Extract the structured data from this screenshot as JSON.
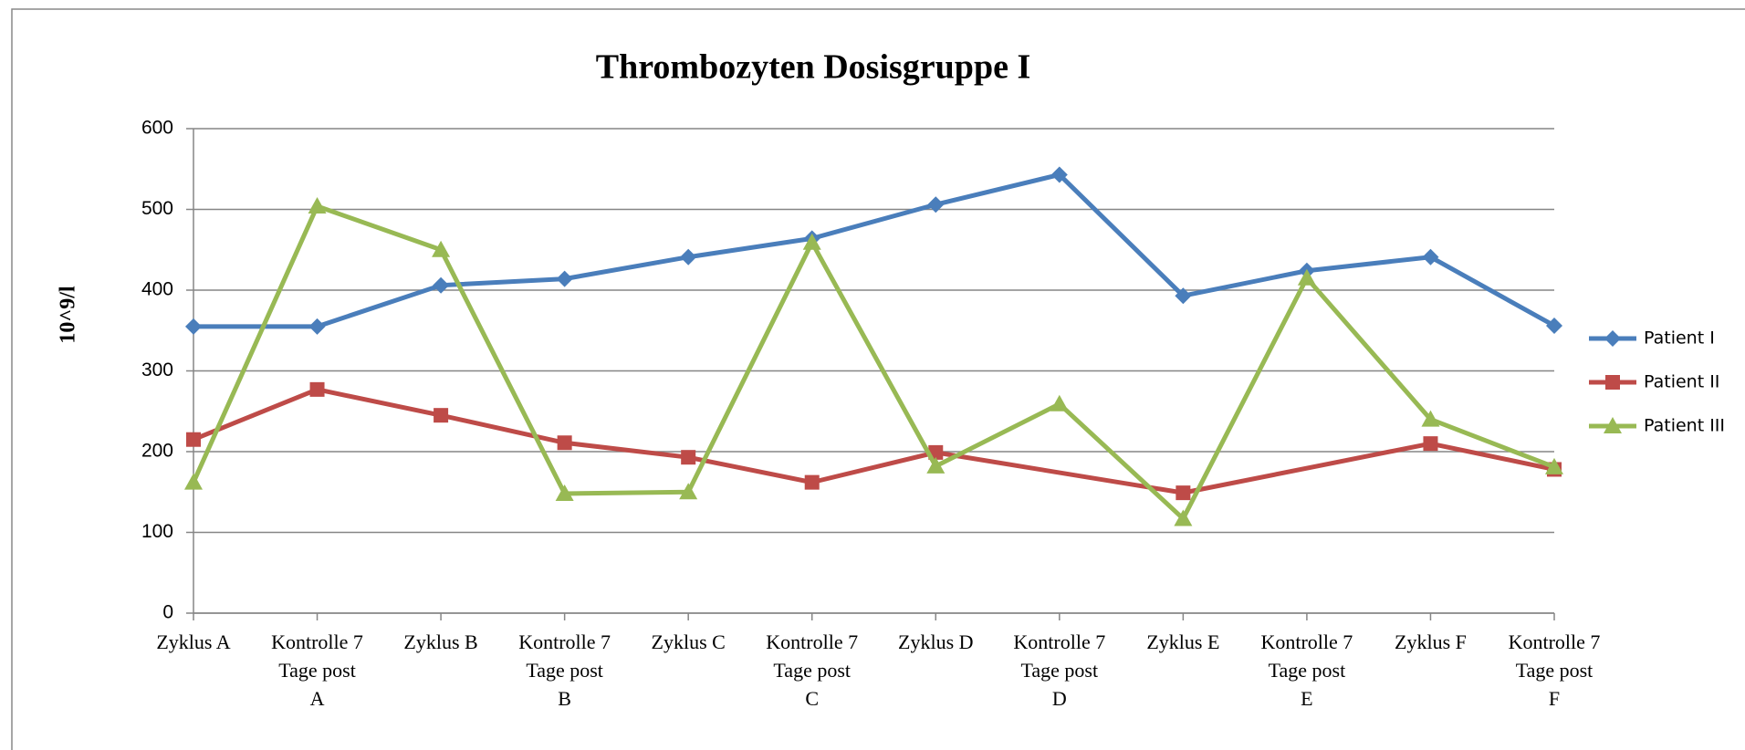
{
  "chart_data": {
    "type": "line",
    "title": "Thrombozyten Dosisgruppe I",
    "y_label": "10^9/l",
    "categories": [
      "Zyklus A",
      "Kontrolle 7\nTage post\nA",
      "Zyklus B",
      "Kontrolle 7\nTage post\nB",
      "Zyklus C",
      "Kontrolle 7\nTage post\nC",
      "Zyklus D",
      "Kontrolle 7\nTage post\nD",
      "Zyklus E",
      "Kontrolle 7\nTage post\nE",
      "Zyklus F",
      "Kontrolle 7\nTage post\nF"
    ],
    "series": [
      {
        "name": "Patient I",
        "color": "#4a7ebb",
        "marker": "diamond",
        "values": [
          355,
          355,
          406,
          414,
          441,
          464,
          506,
          543,
          393,
          424,
          441,
          356
        ]
      },
      {
        "name": "Patient II",
        "color": "#be4b48",
        "marker": "square",
        "values": [
          215,
          277,
          245,
          211,
          193,
          162,
          199,
          null,
          149,
          null,
          210,
          178
        ]
      },
      {
        "name": "Patient III",
        "color": "#98b954",
        "marker": "triangle",
        "values": [
          162,
          504,
          450,
          148,
          150,
          459,
          182,
          259,
          117,
          415,
          240,
          181
        ]
      }
    ],
    "ylim": [
      0,
      600
    ],
    "yticks": [
      0,
      100,
      200,
      300,
      400,
      500,
      600
    ],
    "grid": true,
    "span_gaps": true,
    "legend": "right"
  }
}
